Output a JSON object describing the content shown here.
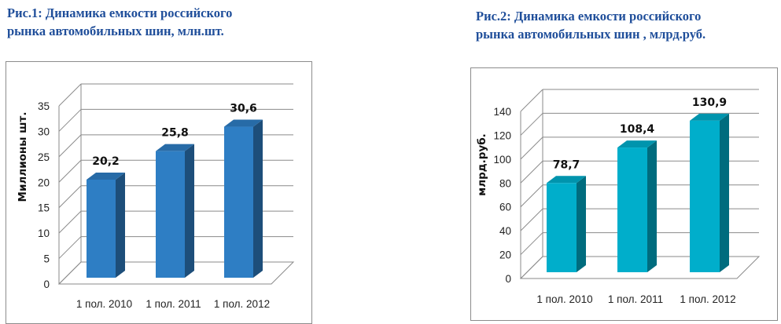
{
  "figures": [
    {
      "title": "Рис.1: Динамика емкости российского\nрынка автомобильных шин, млн.шт."
    },
    {
      "title": "Рис.2: Динамика емкости российского\nрынка автомобильных шин , млрд.руб."
    }
  ],
  "chart_data": [
    {
      "type": "bar",
      "title": "Рис.1: Динамика емкости российского рынка автомобильных шин, млн.шт.",
      "ylabel": "Миллионы шт.",
      "xlabel": "",
      "categories": [
        "1 пол. 2010",
        "1 пол. 2011",
        "1 пол. 2012"
      ],
      "values": [
        20.2,
        25.8,
        30.6
      ],
      "value_labels": [
        "20,2",
        "25,8",
        "30,6"
      ],
      "ylim": [
        0,
        35
      ],
      "yticks": [
        0,
        5,
        10,
        15,
        20,
        25,
        30,
        35
      ],
      "grid": true,
      "legend": "none",
      "color": "#2E7EC4",
      "style": "3d-column"
    },
    {
      "type": "bar",
      "title": "Рис.2: Динамика емкости российского рынка автомобильных шин , млрд.руб.",
      "ylabel": "млрд.руб.",
      "xlabel": "",
      "categories": [
        "1 пол. 2010",
        "1 пол. 2011",
        "1 пол. 2012"
      ],
      "values": [
        78.7,
        108.4,
        130.9
      ],
      "value_labels": [
        "78,7",
        "108,4",
        "130,9"
      ],
      "ylim": [
        0,
        140
      ],
      "yticks": [
        0,
        20,
        40,
        60,
        80,
        100,
        120,
        140
      ],
      "grid": true,
      "legend": "none",
      "color": "#00AECB",
      "style": "3d-column"
    }
  ]
}
